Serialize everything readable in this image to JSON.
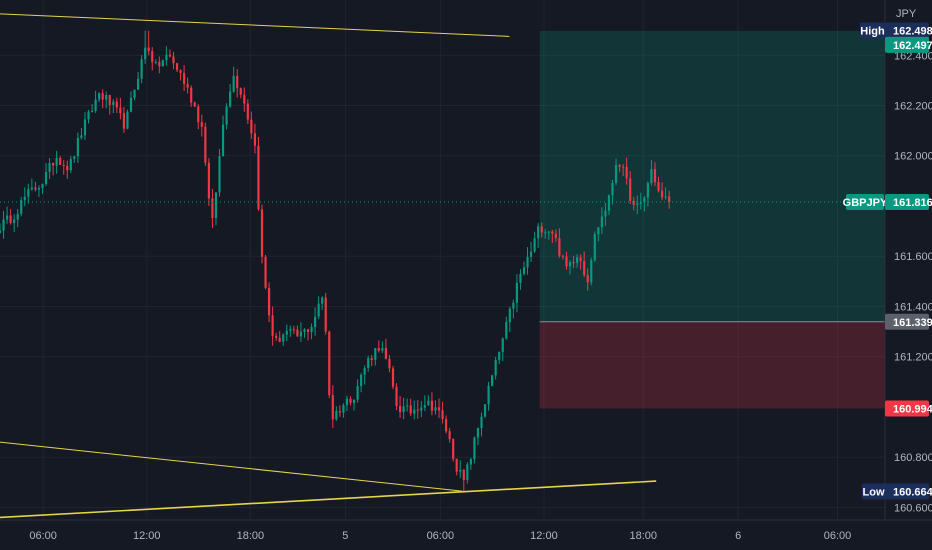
{
  "chart_data": {
    "type": "candlestick",
    "symbol": "GBPJPY",
    "currency": "JPY",
    "ylim": [
      160.55,
      162.62
    ],
    "y_ticks": [
      160.6,
      160.8,
      161.2,
      161.4,
      161.6,
      162.0,
      162.2,
      162.4
    ],
    "y_tick_labels": [
      "160.600",
      "160.800",
      "161.200",
      "161.400",
      "161.600",
      "162.000",
      "162.200",
      "162.400"
    ],
    "x_ticks": [
      {
        "t": 0.05,
        "label": "06:00"
      },
      {
        "t": 0.17,
        "label": "12:00"
      },
      {
        "t": 0.29,
        "label": "18:00"
      },
      {
        "t": 0.4,
        "label": "5"
      },
      {
        "t": 0.51,
        "label": "06:00"
      },
      {
        "t": 0.63,
        "label": "12:00"
      },
      {
        "t": 0.745,
        "label": "18:00"
      },
      {
        "t": 0.855,
        "label": "6"
      },
      {
        "t": 0.97,
        "label": "06:00"
      }
    ],
    "price_tags": {
      "high": {
        "label": "High",
        "value": 162.498,
        "text": "162.498"
      },
      "target": {
        "value": 162.497,
        "text": "162.497"
      },
      "current": {
        "label": "GBPJPY",
        "value": 161.816,
        "text": "161.816"
      },
      "entry": {
        "value": 161.339,
        "text": "161.339"
      },
      "stop": {
        "value": 160.994,
        "text": "160.994"
      },
      "low": {
        "label": "Low",
        "value": 160.664,
        "text": "160.664"
      }
    },
    "position": {
      "t_start": 0.625,
      "target": 162.497,
      "entry": 161.339,
      "stop": 160.994
    },
    "trendlines": [
      {
        "t1": 0.0,
        "p1": 162.565,
        "t2": 0.59,
        "p2": 162.475
      },
      {
        "t1": 0.0,
        "p1": 160.86,
        "t2": 0.535,
        "p2": 160.665
      },
      {
        "t1": 0.0,
        "p1": 160.56,
        "t2": 0.76,
        "p2": 160.705
      }
    ],
    "anchors": [
      [
        0.0,
        161.72
      ],
      [
        0.015,
        161.76
      ],
      [
        0.03,
        161.84
      ],
      [
        0.05,
        161.9
      ],
      [
        0.065,
        162.0
      ],
      [
        0.08,
        161.95
      ],
      [
        0.095,
        162.1
      ],
      [
        0.115,
        162.25
      ],
      [
        0.13,
        162.2
      ],
      [
        0.145,
        162.12
      ],
      [
        0.158,
        162.3
      ],
      [
        0.17,
        162.45
      ],
      [
        0.18,
        162.35
      ],
      [
        0.195,
        162.4
      ],
      [
        0.21,
        162.32
      ],
      [
        0.225,
        162.2
      ],
      [
        0.235,
        162.1
      ],
      [
        0.245,
        161.7
      ],
      [
        0.252,
        161.92
      ],
      [
        0.26,
        162.18
      ],
      [
        0.27,
        162.32
      ],
      [
        0.28,
        162.25
      ],
      [
        0.295,
        162.05
      ],
      [
        0.303,
        161.6
      ],
      [
        0.31,
        161.4
      ],
      [
        0.318,
        161.25
      ],
      [
        0.33,
        161.3
      ],
      [
        0.345,
        161.28
      ],
      [
        0.36,
        161.32
      ],
      [
        0.375,
        161.45
      ],
      [
        0.383,
        160.95
      ],
      [
        0.395,
        161.0
      ],
      [
        0.41,
        161.05
      ],
      [
        0.425,
        161.18
      ],
      [
        0.44,
        161.25
      ],
      [
        0.45,
        161.15
      ],
      [
        0.46,
        161.0
      ],
      [
        0.475,
        160.98
      ],
      [
        0.49,
        161.02
      ],
      [
        0.505,
        161.0
      ],
      [
        0.518,
        160.9
      ],
      [
        0.527,
        160.78
      ],
      [
        0.537,
        160.7
      ],
      [
        0.545,
        160.8
      ],
      [
        0.556,
        160.95
      ],
      [
        0.57,
        161.12
      ],
      [
        0.585,
        161.3
      ],
      [
        0.6,
        161.5
      ],
      [
        0.615,
        161.62
      ],
      [
        0.625,
        161.72
      ],
      [
        0.64,
        161.7
      ],
      [
        0.655,
        161.55
      ],
      [
        0.67,
        161.62
      ],
      [
        0.68,
        161.5
      ],
      [
        0.69,
        161.7
      ],
      [
        0.705,
        161.82
      ],
      [
        0.715,
        162.0
      ],
      [
        0.725,
        161.9
      ],
      [
        0.735,
        161.78
      ],
      [
        0.745,
        161.82
      ],
      [
        0.755,
        161.95
      ],
      [
        0.765,
        161.83
      ],
      [
        0.775,
        161.82
      ]
    ]
  }
}
